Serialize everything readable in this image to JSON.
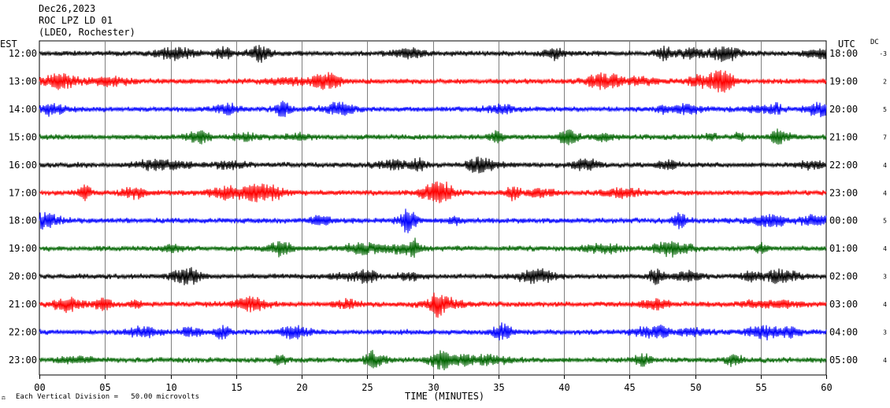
{
  "header": {
    "date": "Dec26,2023",
    "station": "ROC LPZ LD 01",
    "network": "(LDEO, Rochester)"
  },
  "chart_data": {
    "type": "line",
    "title": "Dec26,2023",
    "xlabel": "TIME (MINUTES)",
    "ylabel": "",
    "xlim": [
      0,
      60
    ],
    "x_ticks": [
      "00",
      "05",
      "10",
      "15",
      "20",
      "25",
      "30",
      "35",
      "40",
      "45",
      "50",
      "55",
      "60"
    ],
    "left_axis_title": "EST",
    "right_axis_title": "UTC",
    "dc_title": "DC",
    "grid": "vertical lines every 5 minutes",
    "rows": [
      {
        "est": "12:00",
        "utc": "18:00",
        "dc": "-3",
        "color": "#000000"
      },
      {
        "est": "13:00",
        "utc": "19:00",
        "dc": "2",
        "color": "#ff0000"
      },
      {
        "est": "14:00",
        "utc": "20:00",
        "dc": "5",
        "color": "#0000ff"
      },
      {
        "est": "15:00",
        "utc": "21:00",
        "dc": "7",
        "color": "#006400"
      },
      {
        "est": "16:00",
        "utc": "22:00",
        "dc": "4",
        "color": "#000000"
      },
      {
        "est": "17:00",
        "utc": "23:00",
        "dc": "4",
        "color": "#ff0000"
      },
      {
        "est": "18:00",
        "utc": "00:00",
        "dc": "5",
        "color": "#0000ff"
      },
      {
        "est": "19:00",
        "utc": "01:00",
        "dc": "4",
        "color": "#006400"
      },
      {
        "est": "20:00",
        "utc": "02:00",
        "dc": "3",
        "color": "#000000"
      },
      {
        "est": "21:00",
        "utc": "03:00",
        "dc": "4",
        "color": "#ff0000"
      },
      {
        "est": "22:00",
        "utc": "04:00",
        "dc": "3",
        "color": "#0000ff"
      },
      {
        "est": "23:00",
        "utc": "05:00",
        "dc": "4",
        "color": "#006400"
      }
    ],
    "footer_note": "Each Vertical Division =   50.00 microvolts"
  }
}
